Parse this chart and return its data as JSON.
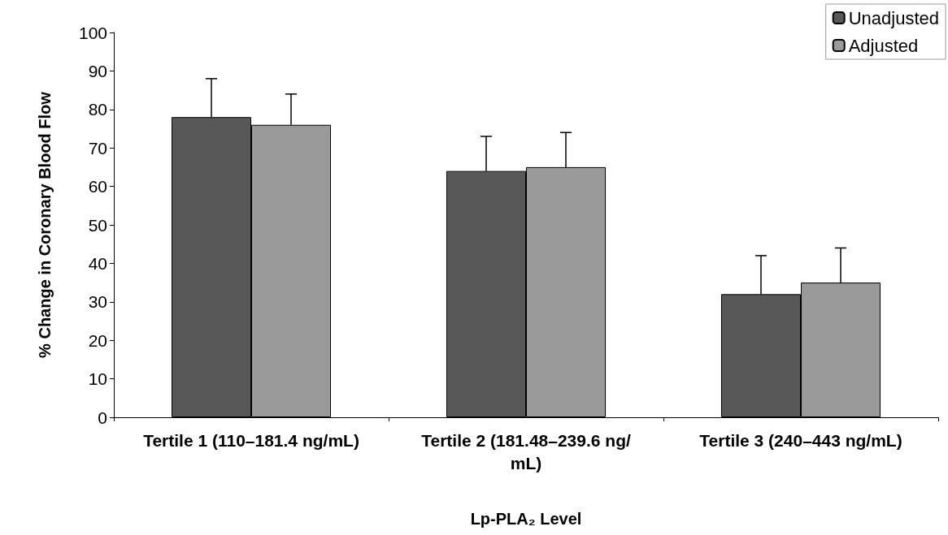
{
  "chart_data": {
    "type": "bar",
    "xlabel": "Lp-PLA₂ Level",
    "ylabel": "% Change in Coronary Blood Flow",
    "categories": [
      "Tertile 1 (110–181.4 ng/mL)",
      "Tertile 2 (181.48–239.6 ng/mL)",
      "Tertile 3 (240–443 ng/mL)"
    ],
    "series": [
      {
        "name": "Unadjusted",
        "color": "#585858",
        "values": [
          78,
          64,
          32
        ],
        "errors": [
          [
            78,
            88
          ],
          [
            64,
            73
          ],
          [
            32,
            42
          ]
        ]
      },
      {
        "name": "Adjusted",
        "color": "#9a9a9a",
        "values": [
          76,
          65,
          35
        ],
        "errors": [
          [
            76,
            84
          ],
          [
            65,
            74
          ],
          [
            35,
            44
          ]
        ]
      }
    ],
    "ylim": [
      0,
      100
    ],
    "yticks": [
      0,
      10,
      20,
      30,
      40,
      50,
      60,
      70,
      80,
      90,
      100
    ],
    "grid": false,
    "legend": "top right"
  }
}
